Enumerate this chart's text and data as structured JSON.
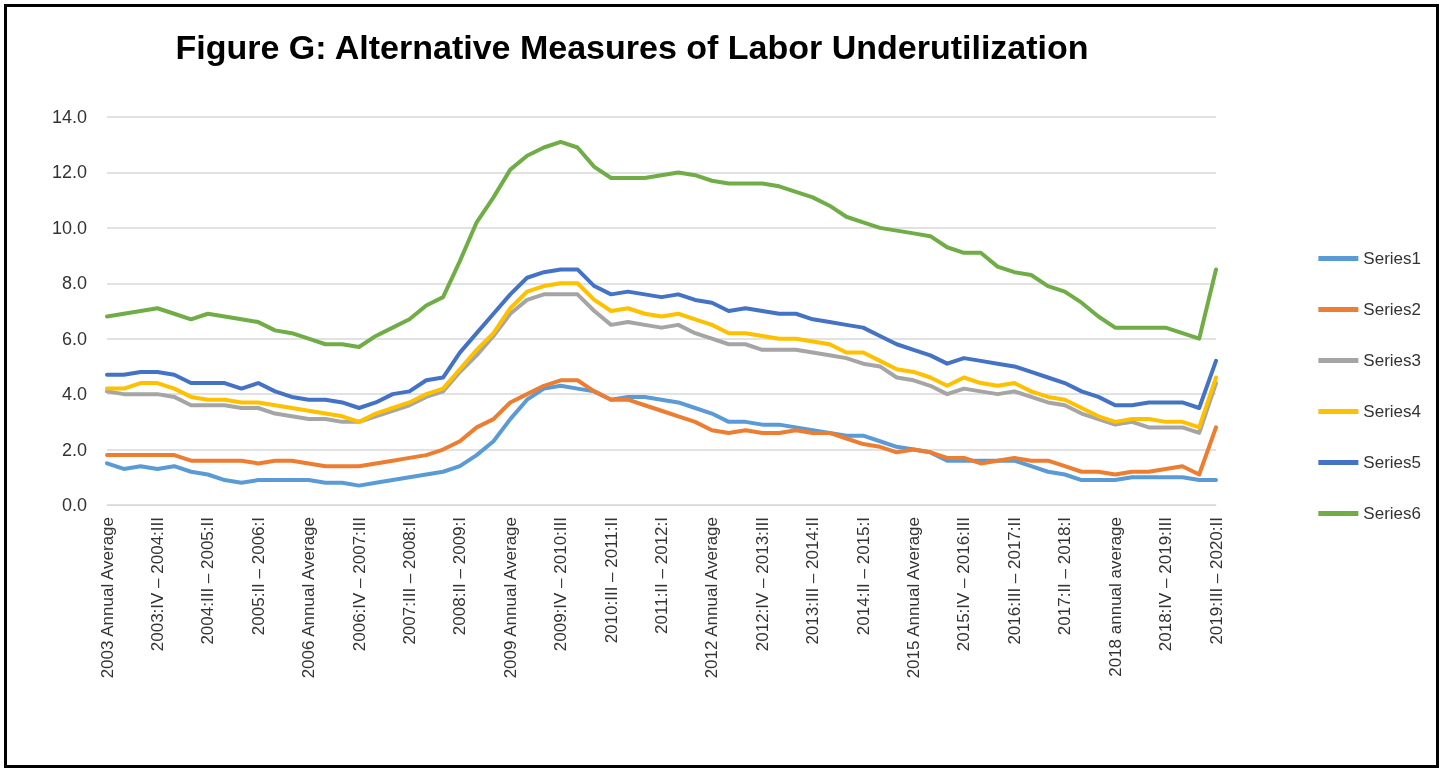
{
  "chart_data": {
    "type": "line",
    "title": "Figure G: Alternative Measures of Labor Underutilization",
    "categories": [
      "2003 Annual Average",
      null,
      null,
      "2003:IV – 2004:III",
      null,
      null,
      "2004:III – 2005:II",
      null,
      null,
      "2005:II – 2006:I",
      null,
      null,
      "2006 Annual Average",
      null,
      null,
      "2006:IV – 2007:III",
      null,
      null,
      "2007:III – 2008:II",
      null,
      null,
      "2008:II – 2009:I",
      null,
      null,
      "2009 Annual Average",
      null,
      null,
      "2009:IV – 2010:III",
      null,
      null,
      "2010:III – 2011:II",
      null,
      null,
      "2011:II – 2012:I",
      null,
      null,
      "2012 Annual Average",
      null,
      null,
      "2012:IV – 2013:III",
      null,
      null,
      "2013:III – 2014:II",
      null,
      null,
      "2014:II – 2015:I",
      null,
      null,
      "2015 Annual Average",
      null,
      null,
      "2015:IV – 2016:III",
      null,
      null,
      "2016:III – 2017:II",
      null,
      null,
      "2017:II – 2018:I",
      null,
      null,
      "2018 annual average",
      null,
      null,
      "2018:IV – 2019:III",
      null,
      null,
      "2019:III – 2020:II"
    ],
    "series": [
      {
        "name": "Series1",
        "color": "#5b9bd5",
        "values": [
          1.5,
          1.3,
          1.4,
          1.3,
          1.4,
          1.2,
          1.1,
          0.9,
          0.8,
          0.9,
          0.9,
          0.9,
          0.9,
          0.8,
          0.8,
          0.7,
          0.8,
          0.9,
          1.0,
          1.1,
          1.2,
          1.4,
          1.8,
          2.3,
          3.1,
          3.8,
          4.2,
          4.3,
          4.2,
          4.1,
          3.8,
          3.9,
          3.9,
          3.8,
          3.7,
          3.5,
          3.3,
          3.0,
          3.0,
          2.9,
          2.9,
          2.8,
          2.7,
          2.6,
          2.5,
          2.5,
          2.3,
          2.1,
          2.0,
          1.9,
          1.6,
          1.6,
          1.6,
          1.6,
          1.6,
          1.4,
          1.2,
          1.1,
          0.9,
          0.9,
          0.9,
          1.0,
          1.0,
          1.0,
          1.0,
          0.9,
          0.9
        ]
      },
      {
        "name": "Series2",
        "color": "#ed7d31",
        "values": [
          1.8,
          1.8,
          1.8,
          1.8,
          1.8,
          1.6,
          1.6,
          1.6,
          1.6,
          1.5,
          1.6,
          1.6,
          1.5,
          1.4,
          1.4,
          1.4,
          1.5,
          1.6,
          1.7,
          1.8,
          2.0,
          2.3,
          2.8,
          3.1,
          3.7,
          4.0,
          4.3,
          4.5,
          4.5,
          4.1,
          3.8,
          3.8,
          3.6,
          3.4,
          3.2,
          3.0,
          2.7,
          2.6,
          2.7,
          2.6,
          2.6,
          2.7,
          2.6,
          2.6,
          2.4,
          2.2,
          2.1,
          1.9,
          2.0,
          1.9,
          1.7,
          1.7,
          1.5,
          1.6,
          1.7,
          1.6,
          1.6,
          1.4,
          1.2,
          1.2,
          1.1,
          1.2,
          1.2,
          1.3,
          1.4,
          1.1,
          2.8
        ]
      },
      {
        "name": "Series3",
        "color": "#a5a5a5",
        "values": [
          4.1,
          4.0,
          4.0,
          4.0,
          3.9,
          3.6,
          3.6,
          3.6,
          3.5,
          3.5,
          3.3,
          3.2,
          3.1,
          3.1,
          3.0,
          3.0,
          3.2,
          3.4,
          3.6,
          3.9,
          4.1,
          4.8,
          5.4,
          6.1,
          6.9,
          7.4,
          7.6,
          7.6,
          7.6,
          7.0,
          6.5,
          6.6,
          6.5,
          6.4,
          6.5,
          6.2,
          6.0,
          5.8,
          5.8,
          5.6,
          5.6,
          5.6,
          5.5,
          5.4,
          5.3,
          5.1,
          5.0,
          4.6,
          4.5,
          4.3,
          4.0,
          4.2,
          4.1,
          4.0,
          4.1,
          3.9,
          3.7,
          3.6,
          3.3,
          3.1,
          2.9,
          3.0,
          2.8,
          2.8,
          2.8,
          2.6,
          4.4
        ]
      },
      {
        "name": "Series4",
        "color": "#ffc000",
        "values": [
          4.2,
          4.2,
          4.4,
          4.4,
          4.2,
          3.9,
          3.8,
          3.8,
          3.7,
          3.7,
          3.6,
          3.5,
          3.4,
          3.3,
          3.2,
          3.0,
          3.3,
          3.5,
          3.7,
          4.0,
          4.2,
          4.9,
          5.6,
          6.2,
          7.1,
          7.7,
          7.9,
          8.0,
          8.0,
          7.4,
          7.0,
          7.1,
          6.9,
          6.8,
          6.9,
          6.7,
          6.5,
          6.2,
          6.2,
          6.1,
          6.0,
          6.0,
          5.9,
          5.8,
          5.5,
          5.5,
          5.2,
          4.9,
          4.8,
          4.6,
          4.3,
          4.6,
          4.4,
          4.3,
          4.4,
          4.1,
          3.9,
          3.8,
          3.5,
          3.2,
          3.0,
          3.1,
          3.1,
          3.0,
          3.0,
          2.8,
          4.6
        ]
      },
      {
        "name": "Series5",
        "color": "#4472c4",
        "values": [
          4.7,
          4.7,
          4.8,
          4.8,
          4.7,
          4.4,
          4.4,
          4.4,
          4.2,
          4.4,
          4.1,
          3.9,
          3.8,
          3.8,
          3.7,
          3.5,
          3.7,
          4.0,
          4.1,
          4.5,
          4.6,
          5.5,
          6.2,
          6.9,
          7.6,
          8.2,
          8.4,
          8.5,
          8.5,
          7.9,
          7.6,
          7.7,
          7.6,
          7.5,
          7.6,
          7.4,
          7.3,
          7.0,
          7.1,
          7.0,
          6.9,
          6.9,
          6.7,
          6.6,
          6.5,
          6.4,
          6.1,
          5.8,
          5.6,
          5.4,
          5.1,
          5.3,
          5.2,
          5.1,
          5.0,
          4.8,
          4.6,
          4.4,
          4.1,
          3.9,
          3.6,
          3.6,
          3.7,
          3.7,
          3.7,
          3.5,
          5.2
        ]
      },
      {
        "name": "Series6",
        "color": "#70ad47",
        "values": [
          6.8,
          6.9,
          7.0,
          7.1,
          6.9,
          6.7,
          6.9,
          6.8,
          6.7,
          6.6,
          6.3,
          6.2,
          6.0,
          5.8,
          5.8,
          5.7,
          6.1,
          6.4,
          6.7,
          7.2,
          7.5,
          8.8,
          10.2,
          11.1,
          12.1,
          12.6,
          12.9,
          13.1,
          12.9,
          12.2,
          11.8,
          11.8,
          11.8,
          11.9,
          12.0,
          11.9,
          11.7,
          11.6,
          11.6,
          11.6,
          11.5,
          11.3,
          11.1,
          10.8,
          10.4,
          10.2,
          10.0,
          9.9,
          9.8,
          9.7,
          9.3,
          9.1,
          9.1,
          8.6,
          8.4,
          8.3,
          7.9,
          7.7,
          7.3,
          6.8,
          6.4,
          6.4,
          6.4,
          6.4,
          6.2,
          6.0,
          8.5
        ]
      }
    ],
    "ylim": [
      0,
      14
    ],
    "yticks": [
      {
        "value": 0,
        "label": "0.0"
      },
      {
        "value": 2,
        "label": "2.0"
      },
      {
        "value": 4,
        "label": "4.0"
      },
      {
        "value": 6,
        "label": "6.0"
      },
      {
        "value": 8,
        "label": "8.0"
      },
      {
        "value": 10,
        "label": "10.0"
      },
      {
        "value": 12,
        "label": "12.0"
      },
      {
        "value": 14,
        "label": "14.0"
      }
    ],
    "grid": "y",
    "legend": "right",
    "marker": "none",
    "line_style": "solid"
  }
}
